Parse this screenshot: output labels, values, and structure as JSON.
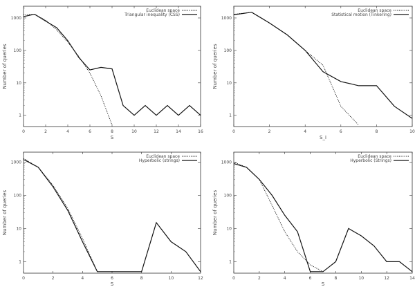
{
  "chart_data": [
    {
      "type": "line",
      "xlabel": "S",
      "ylabel": "Number of queries",
      "xlim": [
        0,
        16
      ],
      "ylim_log": [
        0.45,
        2300
      ],
      "log_y": true,
      "xticks": [
        0,
        2,
        4,
        6,
        8,
        10,
        12,
        14,
        16
      ],
      "yticks": [
        1,
        10,
        100,
        1000
      ],
      "ytick_labels": [
        "1",
        "10",
        "100",
        "1000"
      ],
      "legend_position": "top-right",
      "series": [
        {
          "name": "Euclidean space",
          "style": "dotted",
          "x": [
            0,
            1,
            2,
            3,
            4,
            5,
            6,
            7,
            8
          ],
          "y": [
            1250,
            1300,
            850,
            430,
            180,
            65,
            20,
            4,
            0.5
          ]
        },
        {
          "name": "Triangular inequality (CSS)",
          "style": "solid",
          "x": [
            0,
            1,
            2,
            3,
            4,
            5,
            6,
            7,
            8,
            9,
            10,
            11,
            12,
            13,
            14,
            15,
            16
          ],
          "y": [
            1100,
            1300,
            800,
            500,
            200,
            60,
            25,
            30,
            27,
            2,
            1,
            2,
            1,
            2,
            1,
            2,
            1
          ]
        }
      ]
    },
    {
      "type": "line",
      "xlabel": "S_i",
      "ylabel": "Number of queries",
      "xlim": [
        0,
        10
      ],
      "ylim_log": [
        0.45,
        2300
      ],
      "log_y": true,
      "xticks": [
        0,
        2,
        4,
        6,
        8,
        10
      ],
      "yticks": [
        1,
        10,
        100,
        1000
      ],
      "ytick_labels": [
        "1",
        "10",
        "100",
        "1000"
      ],
      "legend_position": "top-right",
      "series": [
        {
          "name": "Euclidean space",
          "style": "dotted",
          "x": [
            0,
            1,
            2,
            3,
            4,
            5,
            6,
            7
          ],
          "y": [
            1300,
            1500,
            700,
            300,
            100,
            35,
            1.9,
            0.5
          ]
        },
        {
          "name": "Statistical motion (Tinkering)",
          "style": "solid",
          "x": [
            0,
            1,
            2,
            3,
            4,
            5,
            6,
            7,
            8,
            9,
            10
          ],
          "y": [
            1250,
            1500,
            700,
            300,
            100,
            22,
            11,
            8.2,
            8.2,
            1.9,
            0.8
          ]
        }
      ]
    },
    {
      "type": "line",
      "xlabel": "S",
      "ylabel": "Number of queries",
      "xlim": [
        0,
        12
      ],
      "ylim_log": [
        0.45,
        2000
      ],
      "log_y": true,
      "xticks": [
        0,
        2,
        4,
        6,
        8,
        10,
        12
      ],
      "yticks": [
        1,
        10,
        100,
        1000
      ],
      "ytick_labels": [
        "1",
        "10",
        "100",
        "1000"
      ],
      "legend_position": "top-right",
      "series": [
        {
          "name": "Euclidean space",
          "style": "dotted",
          "x": [
            0,
            1,
            2,
            3,
            4,
            5
          ],
          "y": [
            1300,
            700,
            200,
            40,
            5,
            0.5
          ]
        },
        {
          "name": "Hyperbolic (strings)",
          "style": "solid",
          "x": [
            0,
            1,
            2,
            3,
            4,
            5,
            6,
            7,
            8,
            9,
            10,
            11,
            12
          ],
          "y": [
            1200,
            700,
            180,
            35,
            4,
            0.5,
            0.5,
            0.5,
            0.5,
            15,
            4,
            2,
            0.5
          ]
        }
      ]
    },
    {
      "type": "line",
      "xlabel": "S",
      "ylabel": "Number of queries",
      "xlim": [
        0,
        14
      ],
      "ylim_log": [
        0.45,
        2000
      ],
      "log_y": true,
      "xticks": [
        0,
        2,
        4,
        6,
        8,
        10,
        12,
        14
      ],
      "yticks": [
        1,
        10,
        100,
        1000
      ],
      "ytick_labels": [
        "1",
        "10",
        "100",
        "1000"
      ],
      "legend_position": "top-right",
      "series": [
        {
          "name": "Euclidean space",
          "style": "dotted",
          "x": [
            0,
            1,
            2,
            3,
            4,
            5,
            6,
            7
          ],
          "y": [
            1000,
            700,
            300,
            50,
            8,
            2,
            0.8,
            0.5
          ]
        },
        {
          "name": "Hyperbolic (Strings)",
          "style": "solid",
          "x": [
            0,
            1,
            2,
            3,
            4,
            5,
            6,
            7,
            8,
            9,
            10,
            11,
            12,
            13,
            14
          ],
          "y": [
            900,
            700,
            300,
            100,
            25,
            8,
            0.5,
            0.5,
            1,
            10,
            6,
            3,
            1,
            1,
            0.5
          ]
        }
      ]
    }
  ]
}
